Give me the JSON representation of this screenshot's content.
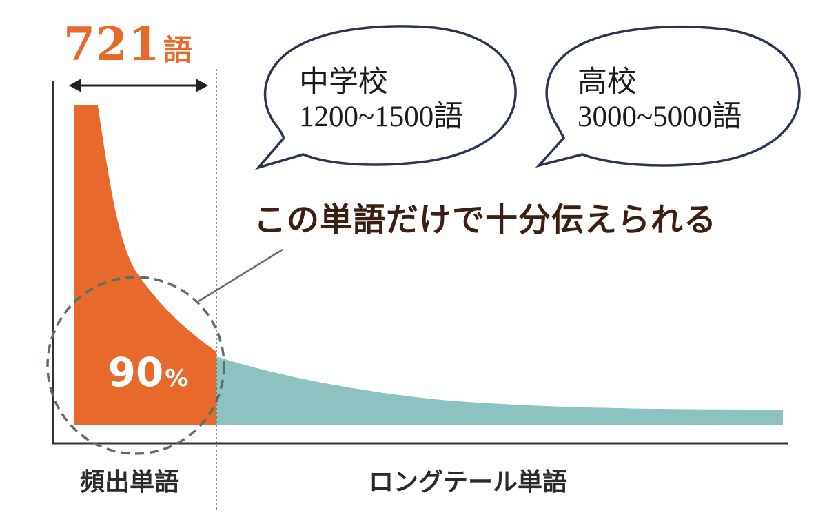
{
  "header": {
    "count_number": "721",
    "count_unit": "語"
  },
  "bubbles": {
    "junior_high": {
      "line1": "中学校",
      "line2": "1200~1500語"
    },
    "high_school": {
      "line1": "高校",
      "line2": "3000~5000語"
    }
  },
  "callout": "この単語だけで十分伝えられる",
  "percentage": {
    "value": "90",
    "symbol": "%"
  },
  "axis_labels": {
    "frequent": "頻出単語",
    "long_tail": "ロングテール単語"
  },
  "colors": {
    "frequent_area": "#e8692c",
    "long_tail_area": "#8cc3c0",
    "accent_text": "#e8692c",
    "bubble_outline": "#2b3550",
    "dashed_circle": "#5f6e62"
  },
  "icons": [
    "double-arrow-icon"
  ]
}
